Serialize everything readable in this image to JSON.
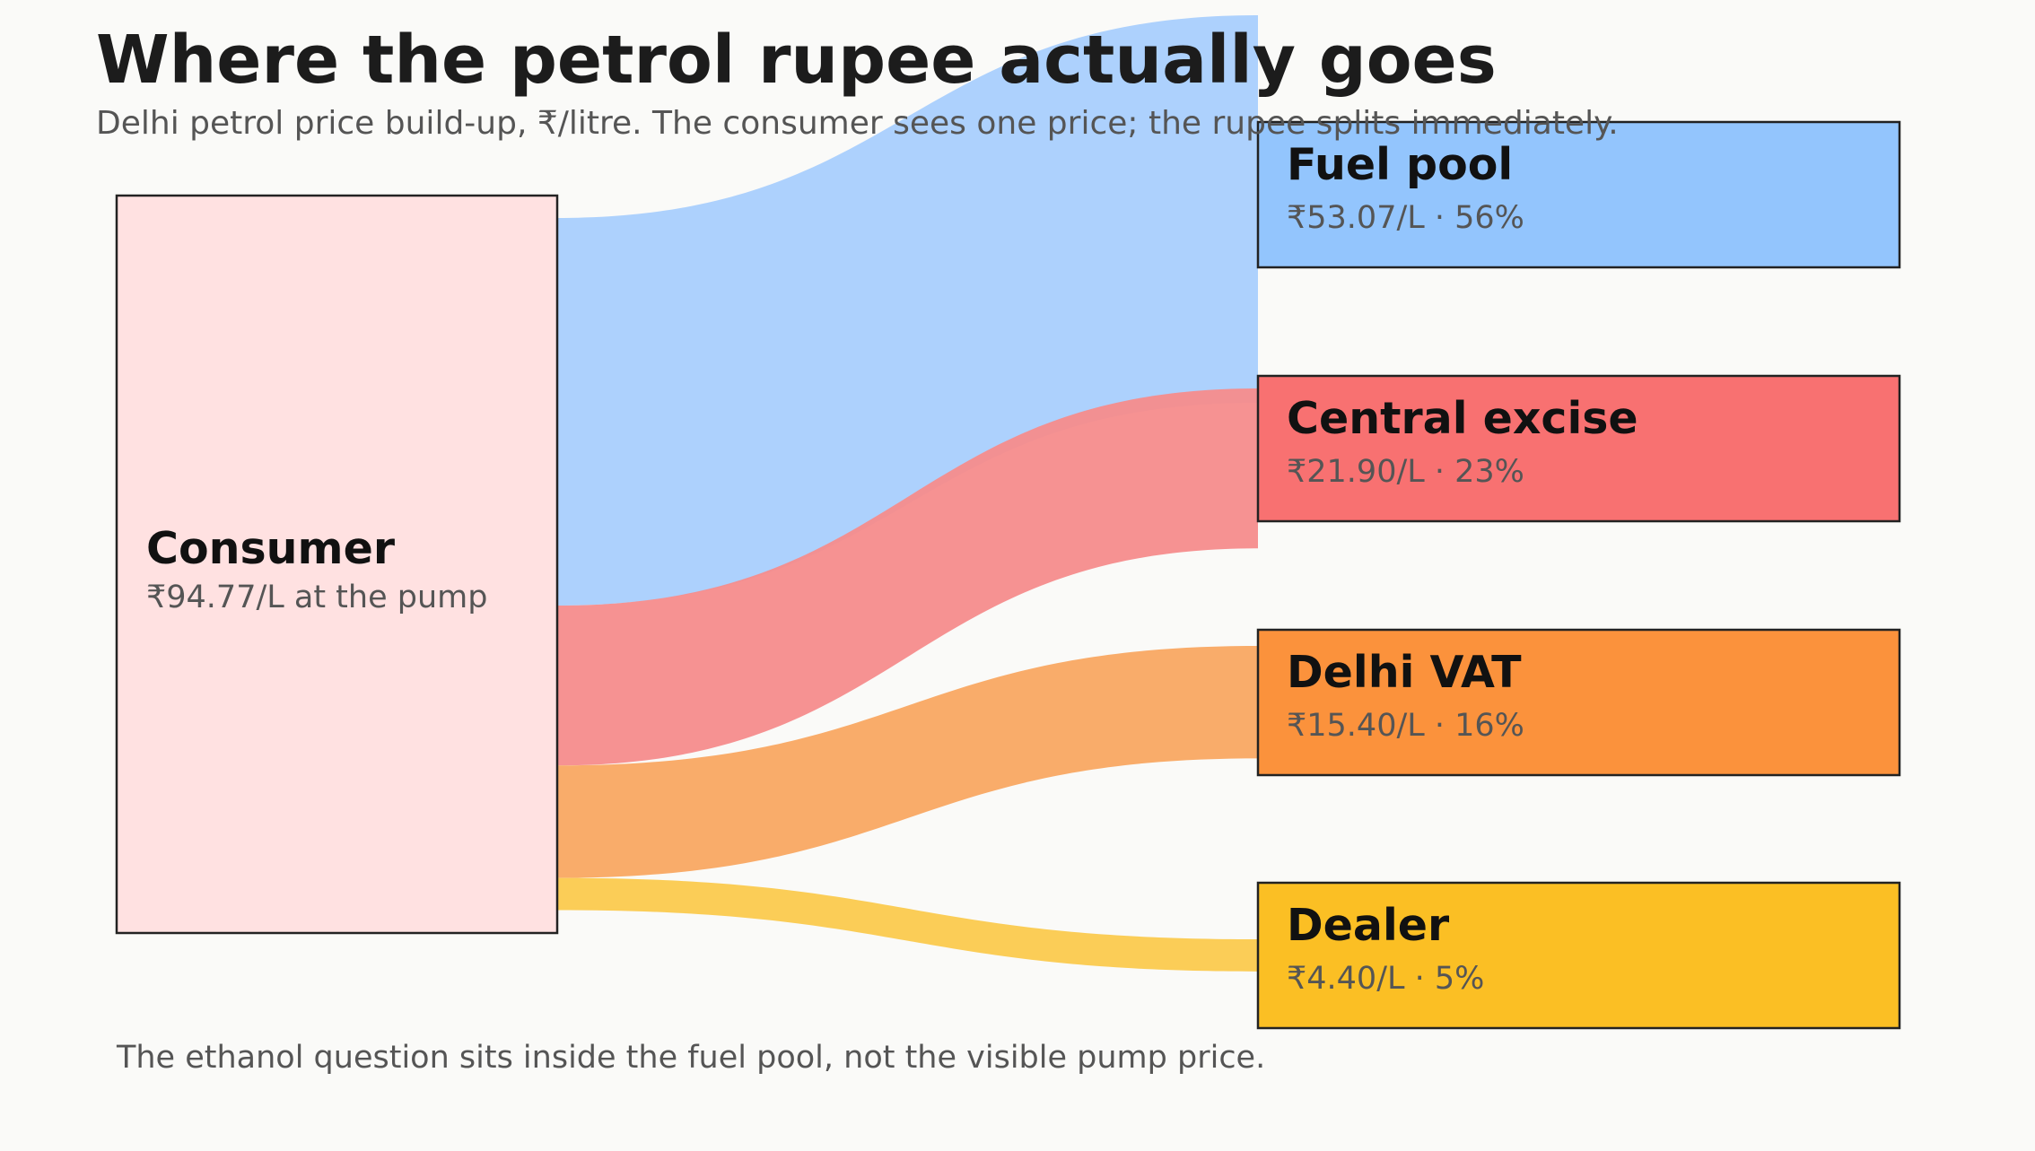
{
  "header": {
    "title": "Where the petrol rupee actually goes",
    "subtitle": "Delhi petrol price build-up, ₹/litre. The consumer sees one price; the rupee splits immediately."
  },
  "source": {
    "label": "Consumer",
    "sub": "₹94.77/L at the pump",
    "value": 94.77,
    "color": "#ffe1e1"
  },
  "targets": [
    {
      "id": "fuel-pool",
      "label": "Fuel pool",
      "sub": "₹53.07/L · 56%",
      "value": 53.07,
      "color": "#93c5fd",
      "flow_color": "#a9cffd"
    },
    {
      "id": "central-excise",
      "label": "Central excise",
      "sub": "₹21.90/L · 23%",
      "value": 21.9,
      "color": "#f87171",
      "flow_color": "#f68c8c"
    },
    {
      "id": "delhi-vat",
      "label": "Delhi VAT",
      "sub": "₹15.40/L · 16%",
      "value": 15.4,
      "color": "#fb923c",
      "flow_color": "#f9a862"
    },
    {
      "id": "dealer",
      "label": "Dealer",
      "sub": "₹4.40/L · 5%",
      "value": 4.4,
      "color": "#fbbf24",
      "flow_color": "#fbca4e"
    }
  ],
  "footnote": "The ethanol question sits inside the fuel pool, not the visible pump price."
}
